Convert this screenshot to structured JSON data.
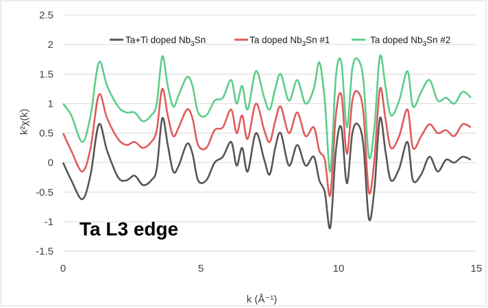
{
  "chart_data": {
    "type": "line",
    "title": "",
    "xlabel": "k (Å⁻¹)",
    "ylabel": "k²χ(k)",
    "xlim": [
      0,
      15
    ],
    "ylim": [
      -1.5,
      2.5
    ],
    "xticks": [
      "0",
      "5",
      "10",
      "15"
    ],
    "yticks": [
      "2.5",
      "2",
      "1.5",
      "1",
      "0.5",
      "0",
      "-0.5",
      "-1",
      "-1.5"
    ],
    "grid": "horizontal",
    "legend_position": "top",
    "annotation": "Ta L3 edge",
    "series": [
      {
        "name": "Ta+Ti doped Nb3Sn",
        "color": "#555555",
        "x": [
          0,
          0.3,
          0.7,
          1.0,
          1.3,
          1.6,
          2.0,
          2.3,
          2.6,
          2.9,
          3.2,
          3.4,
          3.6,
          3.8,
          4.0,
          4.2,
          4.5,
          4.7,
          4.9,
          5.2,
          5.5,
          5.8,
          6.1,
          6.3,
          6.5,
          6.7,
          7.0,
          7.3,
          7.5,
          7.7,
          7.9,
          8.2,
          8.5,
          8.8,
          9.1,
          9.3,
          9.5,
          9.7,
          9.9,
          10.1,
          10.3,
          10.5,
          10.7,
          10.9,
          11.1,
          11.3,
          11.5,
          11.7,
          11.9,
          12.2,
          12.5,
          12.7,
          13.0,
          13.3,
          13.6,
          13.9,
          14.2,
          14.5,
          14.8
        ],
        "values": [
          0.0,
          -0.3,
          -0.62,
          -0.2,
          0.65,
          0.2,
          -0.25,
          -0.3,
          -0.22,
          -0.38,
          -0.3,
          -0.1,
          0.75,
          0.3,
          -0.15,
          -0.05,
          0.32,
          0.15,
          -0.3,
          -0.3,
          0.0,
          0.1,
          0.35,
          -0.05,
          0.25,
          -0.15,
          0.5,
          0.05,
          -0.2,
          0.25,
          0.5,
          -0.05,
          0.3,
          -0.05,
          0.1,
          -0.3,
          -0.5,
          -1.1,
          0.2,
          0.6,
          -0.35,
          0.5,
          0.65,
          0.3,
          -0.95,
          -0.45,
          0.75,
          0.2,
          -0.3,
          -0.1,
          0.35,
          -0.3,
          -0.2,
          0.1,
          -0.15,
          0.05,
          0.0,
          0.1,
          0.05
        ]
      },
      {
        "name": "Ta doped Nb3Sn #1",
        "color": "#e05a5a",
        "x": [
          0,
          0.3,
          0.7,
          1.0,
          1.3,
          1.6,
          2.0,
          2.3,
          2.6,
          2.9,
          3.2,
          3.4,
          3.6,
          3.8,
          4.0,
          4.2,
          4.5,
          4.7,
          4.9,
          5.2,
          5.5,
          5.8,
          6.1,
          6.3,
          6.5,
          6.7,
          7.0,
          7.3,
          7.5,
          7.7,
          7.9,
          8.2,
          8.5,
          8.8,
          9.1,
          9.3,
          9.5,
          9.7,
          9.9,
          10.1,
          10.3,
          10.5,
          10.7,
          10.9,
          11.1,
          11.3,
          11.5,
          11.7,
          11.9,
          12.2,
          12.5,
          12.7,
          13.0,
          13.3,
          13.6,
          13.9,
          14.2,
          14.5,
          14.8
        ],
        "values": [
          0.5,
          0.2,
          -0.15,
          0.25,
          1.15,
          0.75,
          0.4,
          0.3,
          0.35,
          0.25,
          0.35,
          0.55,
          1.25,
          0.8,
          0.45,
          0.6,
          0.9,
          0.75,
          0.3,
          0.25,
          0.55,
          0.6,
          0.9,
          0.5,
          0.8,
          0.4,
          1.0,
          0.55,
          0.35,
          0.7,
          0.95,
          0.5,
          0.85,
          0.45,
          0.6,
          0.2,
          0.05,
          -0.55,
          0.8,
          1.15,
          0.15,
          1.05,
          1.2,
          0.85,
          -0.5,
          0.05,
          1.25,
          0.75,
          0.25,
          0.45,
          0.9,
          0.25,
          0.45,
          0.65,
          0.5,
          0.55,
          0.45,
          0.65,
          0.6
        ]
      },
      {
        "name": "Ta doped Nb3Sn #2",
        "color": "#5ccc8a",
        "x": [
          0,
          0.3,
          0.7,
          1.0,
          1.3,
          1.6,
          2.0,
          2.3,
          2.6,
          2.9,
          3.2,
          3.4,
          3.6,
          3.8,
          4.0,
          4.2,
          4.5,
          4.7,
          4.9,
          5.2,
          5.5,
          5.8,
          6.1,
          6.3,
          6.5,
          6.7,
          7.0,
          7.3,
          7.5,
          7.7,
          7.9,
          8.2,
          8.5,
          8.8,
          9.1,
          9.3,
          9.5,
          9.7,
          9.9,
          10.1,
          10.3,
          10.5,
          10.7,
          10.9,
          11.1,
          11.3,
          11.5,
          11.7,
          11.9,
          12.2,
          12.5,
          12.7,
          13.0,
          13.3,
          13.6,
          13.9,
          14.2,
          14.5,
          14.8
        ],
        "values": [
          1.0,
          0.8,
          0.35,
          0.8,
          1.7,
          1.3,
          0.95,
          0.85,
          0.85,
          0.7,
          0.8,
          1.0,
          1.8,
          1.3,
          0.95,
          1.15,
          1.45,
          1.3,
          0.85,
          0.8,
          1.05,
          1.1,
          1.4,
          1.0,
          1.3,
          0.9,
          1.55,
          1.1,
          0.9,
          1.25,
          1.5,
          1.05,
          1.4,
          1.0,
          1.25,
          1.7,
          1.05,
          -0.15,
          1.45,
          1.7,
          0.6,
          1.6,
          1.75,
          1.4,
          0.1,
          0.6,
          1.8,
          1.3,
          0.8,
          1.05,
          1.55,
          0.95,
          1.2,
          1.4,
          1.05,
          1.1,
          1.0,
          1.2,
          1.1
        ]
      }
    ]
  }
}
